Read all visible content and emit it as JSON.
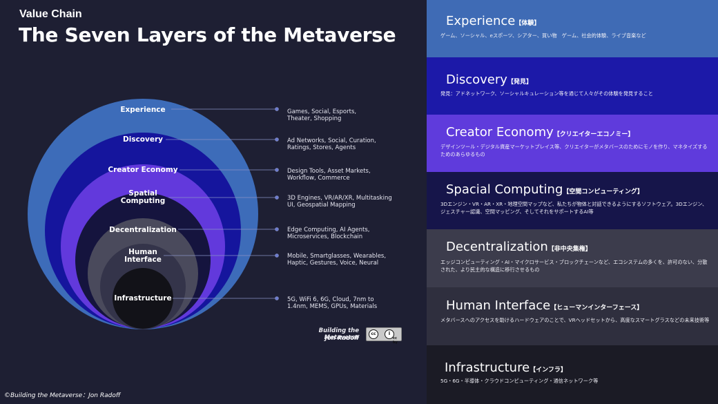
{
  "header": {
    "kicker": "Value Chain",
    "title": "The Seven Layers of the Metaverse"
  },
  "layers": [
    {
      "name": "Experience",
      "color": "#3d6cb9",
      "examples": [
        "Games, Social, Esports,",
        "Theater, Shopping"
      ]
    },
    {
      "name": "Discovery",
      "color": "#15159d",
      "examples": [
        "Ad Networks, Social, Curation,",
        "Ratings, Stores, Agents"
      ]
    },
    {
      "name": "Creator Economy",
      "color": "#6239dc",
      "examples": [
        "Design Tools, Asset Markets,",
        "Workflow, Commerce"
      ]
    },
    {
      "name": "Spatial Computing",
      "name_lines": [
        "Spatial",
        "Computing"
      ],
      "color": "#15143e",
      "examples": [
        "3D Engines, VR/AR/XR, Multitasking",
        "UI, Geospatial Mapping"
      ]
    },
    {
      "name": "Decentralization",
      "color": "#4a4a5c",
      "examples": [
        "Edge Computing, AI Agents,",
        "Microservices, Blockchain"
      ]
    },
    {
      "name": "Human Interface",
      "name_lines": [
        "Human",
        "Interface"
      ],
      "color": "#34344a",
      "examples": [
        "Mobile, Smartglasses, Wearables,",
        "Haptic, Gestures, Voice, Neural"
      ]
    },
    {
      "name": "Infrastructure",
      "color": "#121218",
      "examples": [
        "5G, WiFi 6, 6G, Cloud, 7nm to",
        "1.4nm, MEMS, GPUs, Materials"
      ]
    }
  ],
  "credit": {
    "line1": "Building the Metaverse",
    "line2": "Jon Radoff",
    "license_badge": "cc by"
  },
  "copyright": "©Building the Metaverse：Jon Radoff",
  "bands": [
    {
      "title": "Experience",
      "jp": "【体験】",
      "desc": "ゲーム、ソーシャル、eスポーツ、シアター、買い物　ゲーム、社会的体験、ライブ音楽など",
      "color": "#3f6bb5"
    },
    {
      "title": "Discovery",
      "jp": "【発見】",
      "desc": "発見：アドネットワーク、ソーシャルキュレーション等を通じて人々がその体験を発見すること",
      "color": "#1c19a8"
    },
    {
      "title": "Creator Economy",
      "jp": "【クリエイターエコノミー】",
      "desc": "デザインツール・デジタル資産マーケットプレイス等、クリエイターがメタバースのためにモノを作り、マネタイズするためのあらゆるもの",
      "color": "#5f3bdc"
    },
    {
      "title": "Spacial Computing",
      "jp": "【空間コンピューティング】",
      "desc": "3Dエンジン・VR・AR・XR・地理空間マップなど、私たちが物体と対話できるようにするソフトウェア。3Dエンジン、ジェスチャー認識、空間マッピング、そしてそれをサポートするAI等",
      "color": "#16154a"
    },
    {
      "title": "Decentralization",
      "jp": "【非中央集権】",
      "desc": "エッジコンピューティング・AI・マイクロサービス・ブロックチェーンなど、エコシステムの多くを、許可のない、分散された、より民主的な構造に移行させるもの",
      "color": "#3c3c4c"
    },
    {
      "title": "Human Interface",
      "jp": "【ヒューマンインターフェース】",
      "desc": "メタバースへのアクセスを助けるハードウェアのことで、VRヘッドセットから、高度なスマートグラスなどの未来技術等",
      "color": "#2f2f3e"
    },
    {
      "title": "Infrastructure",
      "jp": "【インフラ】",
      "desc": "5G・6G・半導体・クラウドコンピューティング・通信ネットワーク等",
      "color": "#1b1b25"
    }
  ]
}
